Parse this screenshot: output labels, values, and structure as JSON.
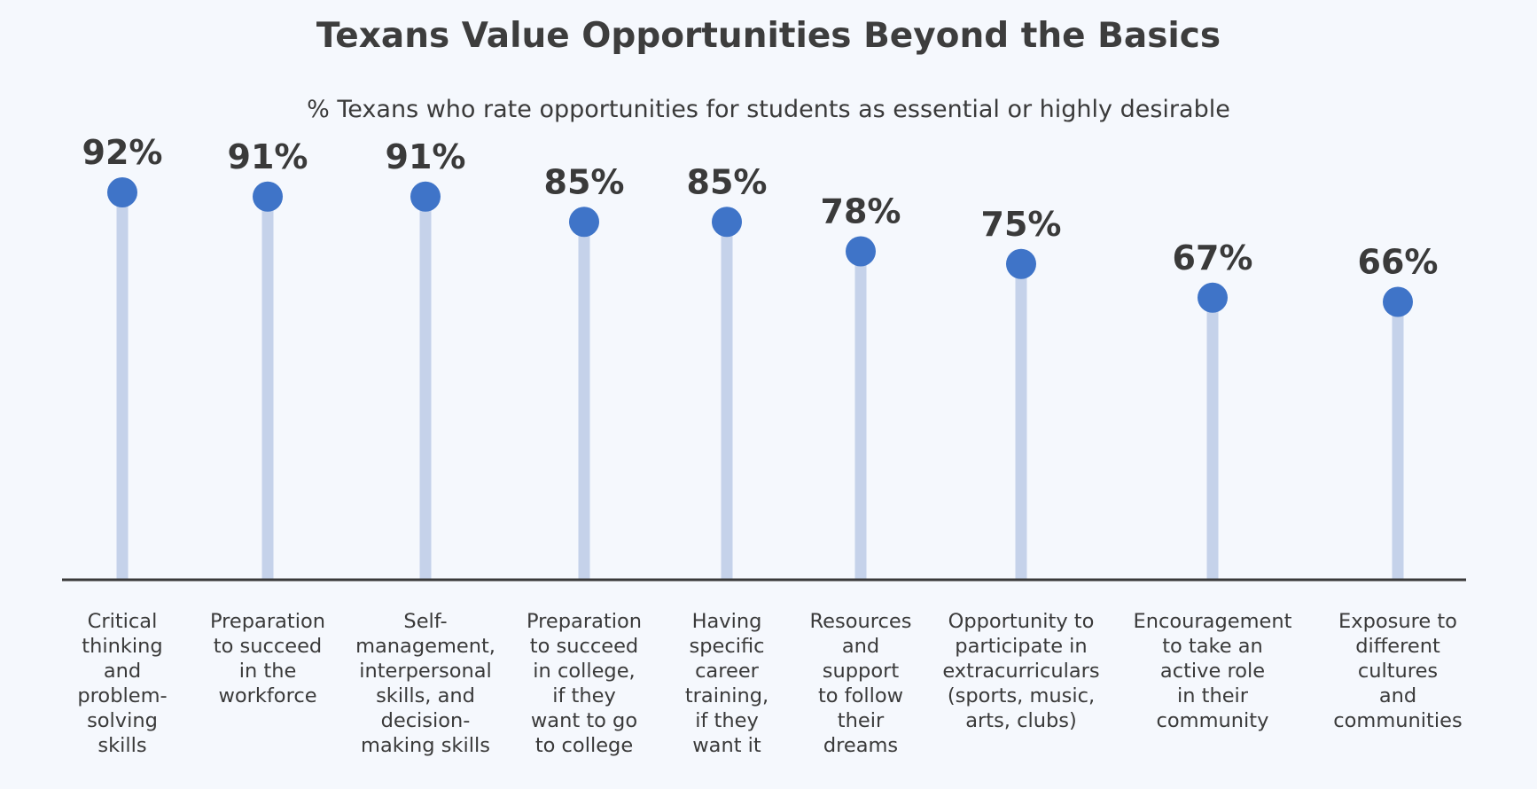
{
  "chart_data": {
    "type": "lollipop",
    "title": "Texans Value Opportunities Beyond the Basics",
    "subtitle": "% Texans who rate opportunities for students as essential or highly desirable",
    "categories": [
      [
        "Critical",
        "thinking",
        "and",
        "problem-",
        "solving",
        "skills"
      ],
      [
        "Preparation",
        "to succeed",
        "in the",
        "workforce"
      ],
      [
        "Self-",
        "management,",
        "interpersonal",
        "skills, and",
        "decision-",
        "making skills"
      ],
      [
        "Preparation",
        "to succeed",
        "in college,",
        "if they",
        "want to go",
        "to college"
      ],
      [
        "Having",
        "specific",
        "career",
        "training,",
        "if they",
        "want it"
      ],
      [
        "Resources",
        "and",
        "support",
        "to follow",
        "their",
        "dreams"
      ],
      [
        "Opportunity to",
        "participate in",
        "extracurriculars",
        "(sports, music,",
        "arts, clubs)"
      ],
      [
        "Encouragement",
        "to take an",
        "active role",
        "in their",
        "community"
      ],
      [
        "Exposure to",
        "different",
        "cultures",
        "and",
        "communities"
      ]
    ],
    "values": [
      92,
      91,
      91,
      85,
      85,
      78,
      75,
      67,
      66
    ],
    "value_labels": [
      "92%",
      "91%",
      "91%",
      "85%",
      "85%",
      "78%",
      "75%",
      "67%",
      "66%"
    ],
    "grid": false,
    "colors": {
      "dot": "#3f74c8",
      "stem": "#c5d2ea",
      "axis": "#3a3a3a",
      "text": "#3a3a3a"
    }
  }
}
